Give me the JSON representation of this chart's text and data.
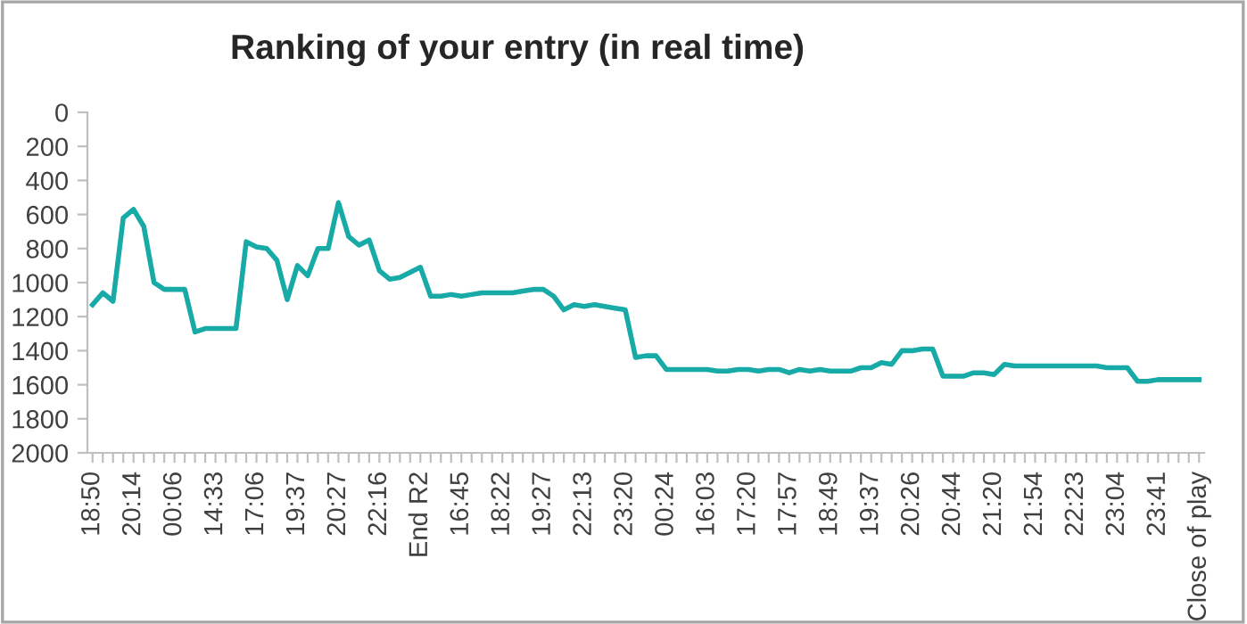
{
  "chart_data": {
    "type": "line",
    "title": "Ranking of your entry (in real time)",
    "categories": [
      "18:50",
      null,
      null,
      null,
      "20:14",
      null,
      null,
      null,
      "00:06",
      null,
      null,
      null,
      "14:33",
      null,
      null,
      null,
      "17:06",
      null,
      null,
      null,
      "19:37",
      null,
      null,
      null,
      "20:27",
      null,
      null,
      null,
      "22:16",
      null,
      null,
      null,
      "End R2",
      null,
      null,
      null,
      "16:45",
      null,
      null,
      null,
      "18:22",
      null,
      null,
      null,
      "19:27",
      null,
      null,
      null,
      "22:13",
      null,
      null,
      null,
      "23:20",
      null,
      null,
      null,
      "00:24",
      null,
      null,
      null,
      "16:03",
      null,
      null,
      null,
      "17:20",
      null,
      null,
      null,
      "17:57",
      null,
      null,
      null,
      "18:49",
      null,
      null,
      null,
      "19:37",
      null,
      null,
      null,
      "20:26",
      null,
      null,
      null,
      "20:44",
      null,
      null,
      null,
      "21:20",
      null,
      null,
      null,
      "21:54",
      null,
      null,
      null,
      "22:23",
      null,
      null,
      null,
      "23:04",
      null,
      null,
      null,
      "23:41",
      null,
      null,
      null,
      "Close of play"
    ],
    "series": [
      {
        "color": "#17aaa6",
        "values": [
          1130,
          1060,
          1110,
          620,
          570,
          670,
          1000,
          1040,
          1040,
          1040,
          1290,
          1270,
          1270,
          1270,
          1270,
          760,
          790,
          800,
          870,
          1100,
          900,
          960,
          800,
          800,
          530,
          730,
          780,
          750,
          930,
          980,
          970,
          940,
          910,
          1080,
          1080,
          1070,
          1080,
          1070,
          1060,
          1060,
          1060,
          1060,
          1050,
          1040,
          1040,
          1080,
          1160,
          1130,
          1140,
          1130,
          1140,
          1150,
          1160,
          1440,
          1430,
          1430,
          1510,
          1510,
          1510,
          1510,
          1510,
          1520,
          1520,
          1510,
          1510,
          1520,
          1510,
          1510,
          1530,
          1510,
          1520,
          1510,
          1520,
          1520,
          1520,
          1500,
          1500,
          1470,
          1480,
          1400,
          1400,
          1390,
          1390,
          1550,
          1550,
          1550,
          1530,
          1530,
          1540,
          1480,
          1490,
          1490,
          1490,
          1490,
          1490,
          1490,
          1490,
          1490,
          1490,
          1500,
          1500,
          1500,
          1580,
          1580,
          1570,
          1570,
          1570,
          1570,
          1570
        ]
      }
    ],
    "ylim": [
      2000,
      0
    ],
    "yticks": [
      0,
      200,
      400,
      600,
      800,
      1000,
      1200,
      1400,
      1600,
      1800,
      2000
    ],
    "grid": false,
    "legend": false,
    "marker": "none",
    "line_style": "solid"
  }
}
